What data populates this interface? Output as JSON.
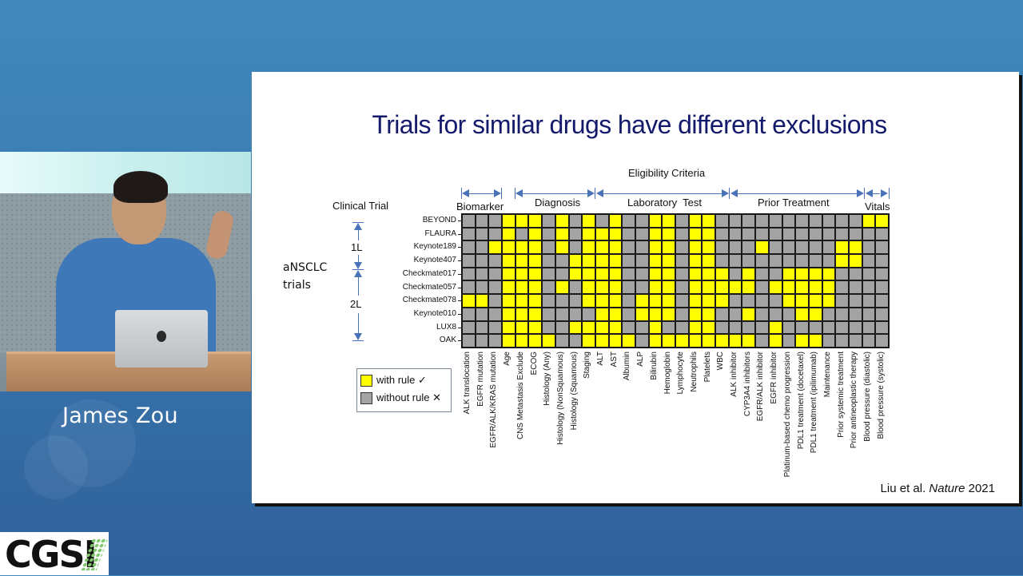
{
  "speaker": {
    "name": "James Zou"
  },
  "logo": {
    "text": "CGSI"
  },
  "slide": {
    "title": "Trials for similar drugs have different exclusions",
    "header": "Eligibility Criteria",
    "row_axis_label": "Clinical Trial",
    "group_label_line1": "aNSCLC",
    "group_label_line2": "trials",
    "line_1L": "1L",
    "line_2L": "2L",
    "categories": [
      {
        "label": "Biomarker"
      },
      {
        "label": "Diagnosis"
      },
      {
        "label": "Laboratory  Test"
      },
      {
        "label": "Prior Treatment"
      },
      {
        "label": "Vitals"
      }
    ],
    "legend": {
      "with_rule": "with rule ✓",
      "without_rule": "without rule ✕",
      "with_color": "#ffff00",
      "without_color": "#a3a3a3"
    },
    "citation_pre": "Liu et al. ",
    "citation_journal": "Nature",
    "citation_year": " 2021"
  },
  "chart_data": {
    "type": "heatmap",
    "title": "Eligibility Criteria",
    "ylabel": "Clinical Trial",
    "legend": [
      "with rule",
      "without rule"
    ],
    "category_groups": [
      {
        "name": "Biomarker",
        "columns": [
          0,
          2
        ]
      },
      {
        "name": "Diagnosis",
        "columns": [
          3,
          9
        ]
      },
      {
        "name": "Laboratory Test",
        "columns": [
          10,
          19
        ]
      },
      {
        "name": "Prior Treatment",
        "columns": [
          20,
          29
        ]
      },
      {
        "name": "Vitals",
        "columns": [
          30,
          31
        ]
      }
    ],
    "line_groups": [
      {
        "name": "1L",
        "rows": [
          "BEYOND",
          "FLAURA",
          "Keynote189",
          "Keynote407"
        ]
      },
      {
        "name": "2L",
        "rows": [
          "Checkmate017",
          "Checkmate057",
          "Checkmate078",
          "Keynote010",
          "LUX8",
          "OAK"
        ]
      }
    ],
    "x": [
      "ALK translocation",
      "EGFR mutation",
      "EGFR/ALK/KRAS mutation",
      "Age",
      "CNS Metastasis Exclude",
      "ECOG",
      "Histology (Any)",
      "Histology (NonSquamous)",
      "Histology (Squamous)",
      "Staging",
      "ALT",
      "AST",
      "Albumin",
      "ALP",
      "Bilirubin",
      "Hemoglobin",
      "Lymphocyte",
      "Neutrophils",
      "Platelets",
      "WBC",
      "ALK inhibitor",
      "CYP3A4 inhibitors",
      "EGFR/ALK inhibitor",
      "EGFR inhibitor",
      "Platinum-based chemo progression",
      "PDL1 treatment (docetaxel)",
      "PDL1 treatment (ipilimumab)",
      "Maintenance",
      "Prior systemic treatment",
      "Prior antineoplastic therapy",
      "Blood pressure (diastolic)",
      "Blood pressure (systolic)"
    ],
    "y": [
      "BEYOND",
      "FLAURA",
      "Keynote189",
      "Keynote407",
      "Checkmate017",
      "Checkmate057",
      "Checkmate078",
      "Keynote010",
      "LUX8",
      "OAK"
    ],
    "values": [
      [
        0,
        0,
        0,
        1,
        1,
        1,
        0,
        1,
        0,
        1,
        0,
        1,
        0,
        0,
        1,
        1,
        0,
        1,
        1,
        0,
        0,
        0,
        0,
        0,
        0,
        0,
        0,
        0,
        0,
        0,
        1,
        1
      ],
      [
        0,
        0,
        0,
        1,
        0,
        1,
        0,
        1,
        0,
        1,
        1,
        1,
        0,
        0,
        1,
        1,
        0,
        1,
        1,
        0,
        0,
        0,
        0,
        0,
        0,
        0,
        0,
        0,
        0,
        0,
        0,
        0
      ],
      [
        0,
        0,
        1,
        1,
        1,
        1,
        0,
        1,
        0,
        1,
        1,
        1,
        0,
        0,
        1,
        1,
        0,
        1,
        1,
        0,
        0,
        0,
        1,
        0,
        0,
        0,
        0,
        0,
        1,
        1,
        0,
        0
      ],
      [
        0,
        0,
        0,
        1,
        1,
        1,
        0,
        0,
        1,
        1,
        1,
        1,
        0,
        0,
        1,
        1,
        0,
        1,
        1,
        0,
        0,
        0,
        0,
        0,
        0,
        0,
        0,
        0,
        1,
        1,
        0,
        0
      ],
      [
        0,
        0,
        0,
        1,
        1,
        1,
        0,
        0,
        1,
        1,
        1,
        1,
        0,
        0,
        1,
        1,
        0,
        1,
        1,
        1,
        0,
        1,
        0,
        0,
        1,
        1,
        1,
        1,
        0,
        0,
        0,
        0
      ],
      [
        0,
        0,
        0,
        1,
        1,
        1,
        0,
        1,
        0,
        1,
        1,
        1,
        0,
        0,
        1,
        1,
        0,
        1,
        1,
        1,
        1,
        1,
        0,
        1,
        1,
        1,
        1,
        1,
        0,
        0,
        0,
        0
      ],
      [
        1,
        1,
        0,
        1,
        1,
        1,
        0,
        0,
        0,
        1,
        1,
        1,
        0,
        1,
        1,
        1,
        0,
        1,
        1,
        1,
        0,
        0,
        0,
        0,
        1,
        1,
        1,
        1,
        0,
        0,
        0,
        0
      ],
      [
        0,
        0,
        0,
        1,
        1,
        1,
        0,
        0,
        0,
        0,
        1,
        1,
        0,
        1,
        1,
        1,
        0,
        1,
        1,
        0,
        0,
        1,
        0,
        0,
        0,
        1,
        1,
        0,
        0,
        0,
        0,
        0
      ],
      [
        0,
        0,
        0,
        1,
        1,
        1,
        0,
        0,
        1,
        1,
        1,
        1,
        0,
        0,
        1,
        0,
        0,
        1,
        1,
        0,
        0,
        0,
        0,
        1,
        0,
        0,
        0,
        0,
        0,
        0,
        0,
        0
      ],
      [
        0,
        0,
        0,
        1,
        1,
        1,
        1,
        0,
        0,
        1,
        1,
        1,
        1,
        0,
        1,
        1,
        1,
        1,
        1,
        1,
        1,
        1,
        0,
        1,
        0,
        1,
        1,
        0,
        0,
        0,
        0,
        0
      ]
    ],
    "value_meaning": {
      "1": "with rule",
      "0": "without rule"
    }
  }
}
